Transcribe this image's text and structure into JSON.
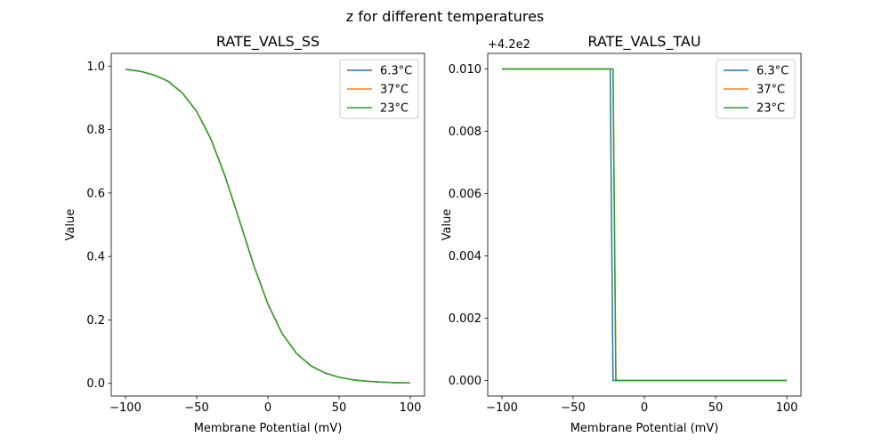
{
  "figure": {
    "suptitle": "z for different temperatures"
  },
  "chart_data": [
    {
      "type": "line",
      "title": "RATE_VALS_SS",
      "xlabel": "Membrane Potential (mV)",
      "ylabel": "Value",
      "xlim": [
        -110,
        110
      ],
      "ylim": [
        -0.04,
        1.04
      ],
      "xticks": [
        -100,
        -50,
        0,
        50,
        100
      ],
      "xtick_labels": [
        "−100",
        "−50",
        "0",
        "50",
        "100"
      ],
      "yticks": [
        0.0,
        0.2,
        0.4,
        0.6,
        0.8,
        1.0
      ],
      "ytick_labels": [
        "0.0",
        "0.2",
        "0.4",
        "0.6",
        "0.8",
        "1.0"
      ],
      "offset_label": "",
      "legend_position": "upper right",
      "x": [
        -100,
        -90,
        -80,
        -70,
        -60,
        -50,
        -40,
        -30,
        -20,
        -10,
        0,
        10,
        20,
        30,
        40,
        50,
        60,
        70,
        80,
        90,
        100
      ],
      "series": [
        {
          "name": "6.3°C",
          "color": "#1f77b4",
          "values": [
            0.99,
            0.984,
            0.972,
            0.952,
            0.915,
            0.857,
            0.77,
            0.652,
            0.514,
            0.373,
            0.25,
            0.157,
            0.095,
            0.056,
            0.033,
            0.019,
            0.011,
            0.0065,
            0.0037,
            0.0021,
            0.0012
          ]
        },
        {
          "name": "37°C",
          "color": "#ff7f0e",
          "values": [
            0.99,
            0.984,
            0.972,
            0.952,
            0.915,
            0.857,
            0.77,
            0.652,
            0.514,
            0.373,
            0.25,
            0.157,
            0.095,
            0.056,
            0.033,
            0.019,
            0.011,
            0.0065,
            0.0037,
            0.0021,
            0.0012
          ]
        },
        {
          "name": "23°C",
          "color": "#2ca02c",
          "values": [
            0.99,
            0.984,
            0.972,
            0.952,
            0.915,
            0.857,
            0.77,
            0.652,
            0.514,
            0.373,
            0.25,
            0.157,
            0.095,
            0.056,
            0.033,
            0.019,
            0.011,
            0.0065,
            0.0037,
            0.0021,
            0.0012
          ]
        }
      ]
    },
    {
      "type": "line",
      "title": "RATE_VALS_TAU",
      "xlabel": "Membrane Potential (mV)",
      "ylabel": "Value",
      "xlim": [
        -110,
        110
      ],
      "ylim": [
        -0.0005,
        0.0105
      ],
      "xticks": [
        -100,
        -50,
        0,
        50,
        100
      ],
      "xtick_labels": [
        "−100",
        "−50",
        "0",
        "50",
        "100"
      ],
      "yticks": [
        0.0,
        0.002,
        0.004,
        0.006,
        0.008,
        0.01
      ],
      "ytick_labels": [
        "0.000",
        "0.002",
        "0.004",
        "0.006",
        "0.008",
        "0.010"
      ],
      "offset_label": "+4.2e2",
      "legend_position": "upper right",
      "series": [
        {
          "name": "6.3°C",
          "color": "#1f77b4",
          "x": [
            -100,
            -24,
            -22,
            100
          ],
          "values": [
            0.01,
            0.01,
            0.0,
            0.0
          ]
        },
        {
          "name": "37°C",
          "color": "#ff7f0e",
          "x": [
            -100,
            -22,
            -20,
            100
          ],
          "values": [
            0.01,
            0.01,
            0.0,
            0.0
          ]
        },
        {
          "name": "23°C",
          "color": "#2ca02c",
          "x": [
            -100,
            -22,
            -20,
            100
          ],
          "values": [
            0.01,
            0.01,
            0.0,
            0.0
          ]
        }
      ]
    }
  ]
}
